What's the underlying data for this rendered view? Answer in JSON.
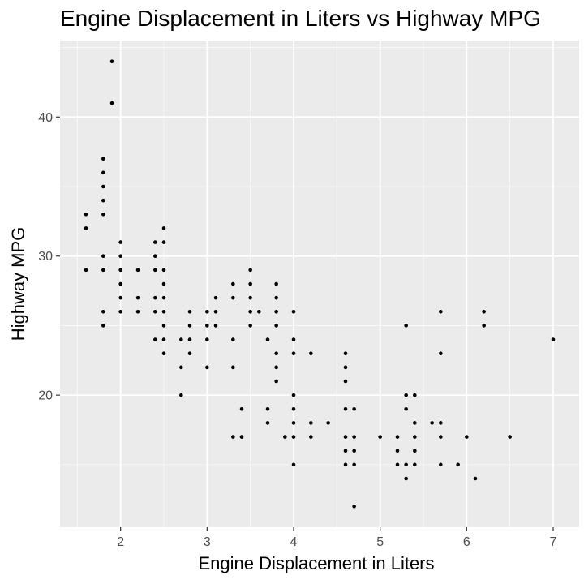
{
  "chart_data": {
    "type": "scatter",
    "title": "Engine Displacement in Liters vs Highway MPG",
    "xlabel": "Engine Displacement in Liters",
    "ylabel": "Highway MPG",
    "xlim": [
      1.3,
      7.3
    ],
    "ylim": [
      10.5,
      45.5
    ],
    "x_ticks": [
      2,
      3,
      4,
      5,
      6,
      7
    ],
    "y_ticks": [
      20,
      30,
      40
    ],
    "x_tick_labels": [
      "2",
      "3",
      "4",
      "5",
      "6",
      "7"
    ],
    "y_tick_labels": [
      "20",
      "30",
      "40"
    ],
    "grid": true,
    "background": "#ebebeb",
    "grid_color": "#ffffff",
    "point_color": "#000000",
    "points": [
      [
        1.6,
        33
      ],
      [
        1.6,
        32
      ],
      [
        1.6,
        29
      ],
      [
        1.8,
        37
      ],
      [
        1.8,
        36
      ],
      [
        1.8,
        35
      ],
      [
        1.8,
        34
      ],
      [
        1.8,
        33
      ],
      [
        1.8,
        30
      ],
      [
        1.8,
        29
      ],
      [
        1.8,
        26
      ],
      [
        1.8,
        25
      ],
      [
        1.9,
        44
      ],
      [
        1.9,
        41
      ],
      [
        2.0,
        31
      ],
      [
        2.0,
        30
      ],
      [
        2.0,
        29
      ],
      [
        2.0,
        28
      ],
      [
        2.0,
        27
      ],
      [
        2.0,
        26
      ],
      [
        2.2,
        29
      ],
      [
        2.2,
        27
      ],
      [
        2.2,
        26
      ],
      [
        2.4,
        31
      ],
      [
        2.4,
        30
      ],
      [
        2.4,
        29
      ],
      [
        2.4,
        27
      ],
      [
        2.4,
        26
      ],
      [
        2.4,
        24
      ],
      [
        2.5,
        32
      ],
      [
        2.5,
        31
      ],
      [
        2.5,
        29
      ],
      [
        2.5,
        28
      ],
      [
        2.5,
        27
      ],
      [
        2.5,
        26
      ],
      [
        2.5,
        25
      ],
      [
        2.5,
        24
      ],
      [
        2.5,
        23
      ],
      [
        2.7,
        24
      ],
      [
        2.7,
        22
      ],
      [
        2.7,
        20
      ],
      [
        2.8,
        26
      ],
      [
        2.8,
        25
      ],
      [
        2.8,
        24
      ],
      [
        2.8,
        23
      ],
      [
        3.0,
        26
      ],
      [
        3.0,
        25
      ],
      [
        3.0,
        24
      ],
      [
        3.0,
        22
      ],
      [
        3.1,
        27
      ],
      [
        3.1,
        26
      ],
      [
        3.1,
        25
      ],
      [
        3.3,
        28
      ],
      [
        3.3,
        27
      ],
      [
        3.3,
        24
      ],
      [
        3.3,
        22
      ],
      [
        3.3,
        17
      ],
      [
        3.4,
        19
      ],
      [
        3.4,
        17
      ],
      [
        3.5,
        29
      ],
      [
        3.5,
        28
      ],
      [
        3.5,
        27
      ],
      [
        3.5,
        26
      ],
      [
        3.5,
        25
      ],
      [
        3.6,
        26
      ],
      [
        3.7,
        24
      ],
      [
        3.7,
        19
      ],
      [
        3.7,
        18
      ],
      [
        3.8,
        28
      ],
      [
        3.8,
        27
      ],
      [
        3.8,
        26
      ],
      [
        3.8,
        25
      ],
      [
        3.8,
        23
      ],
      [
        3.8,
        22
      ],
      [
        3.8,
        21
      ],
      [
        3.9,
        17
      ],
      [
        4.0,
        26
      ],
      [
        4.0,
        24
      ],
      [
        4.0,
        23
      ],
      [
        4.0,
        20
      ],
      [
        4.0,
        19
      ],
      [
        4.0,
        18
      ],
      [
        4.0,
        17
      ],
      [
        4.0,
        15
      ],
      [
        4.2,
        23
      ],
      [
        4.2,
        18
      ],
      [
        4.2,
        17
      ],
      [
        4.4,
        18
      ],
      [
        4.6,
        23
      ],
      [
        4.6,
        22
      ],
      [
        4.6,
        21
      ],
      [
        4.6,
        19
      ],
      [
        4.6,
        17
      ],
      [
        4.6,
        16
      ],
      [
        4.6,
        15
      ],
      [
        4.7,
        19
      ],
      [
        4.7,
        17
      ],
      [
        4.7,
        16
      ],
      [
        4.7,
        15
      ],
      [
        4.7,
        12
      ],
      [
        5.0,
        17
      ],
      [
        5.2,
        17
      ],
      [
        5.2,
        16
      ],
      [
        5.2,
        15
      ],
      [
        5.3,
        25
      ],
      [
        5.3,
        20
      ],
      [
        5.3,
        19
      ],
      [
        5.3,
        15
      ],
      [
        5.3,
        14
      ],
      [
        5.4,
        20
      ],
      [
        5.4,
        18
      ],
      [
        5.4,
        17
      ],
      [
        5.4,
        16
      ],
      [
        5.4,
        15
      ],
      [
        5.6,
        18
      ],
      [
        5.7,
        26
      ],
      [
        5.7,
        23
      ],
      [
        5.7,
        18
      ],
      [
        5.7,
        17
      ],
      [
        5.7,
        15
      ],
      [
        5.9,
        15
      ],
      [
        6.0,
        17
      ],
      [
        6.1,
        14
      ],
      [
        6.2,
        26
      ],
      [
        6.2,
        25
      ],
      [
        6.5,
        17
      ],
      [
        7.0,
        24
      ]
    ]
  }
}
